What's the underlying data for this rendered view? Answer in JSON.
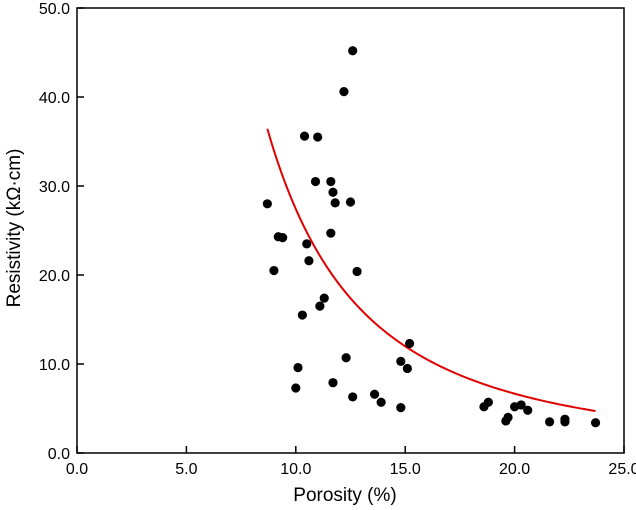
{
  "chart_data": {
    "type": "scatter",
    "xlabel": "Porosity (%)",
    "ylabel": "Resistivity (kΩ·cm)",
    "xlim": [
      0,
      25
    ],
    "ylim": [
      0,
      50
    ],
    "x_ticks": [
      0,
      5,
      10,
      15,
      20,
      25
    ],
    "y_ticks": [
      0,
      10,
      20,
      30,
      40,
      50
    ],
    "x_tick_labels": [
      "0.0",
      "5.0",
      "10.0",
      "15.0",
      "20.0",
      "25.0"
    ],
    "y_tick_labels": [
      "0.0",
      "10.0",
      "20.0",
      "30.0",
      "40.0",
      "50.0"
    ],
    "grid": false,
    "legend": "none",
    "colors": {
      "points": "#000000",
      "fit": "#e00000",
      "axes": "#000000"
    },
    "series": [
      {
        "type": "scatter",
        "points": [
          [
            8.7,
            28.0
          ],
          [
            9.0,
            20.5
          ],
          [
            9.2,
            24.3
          ],
          [
            9.4,
            24.2
          ],
          [
            10.0,
            7.3
          ],
          [
            10.1,
            9.6
          ],
          [
            10.3,
            15.5
          ],
          [
            10.4,
            35.6
          ],
          [
            10.5,
            23.5
          ],
          [
            10.6,
            21.6
          ],
          [
            10.9,
            30.5
          ],
          [
            11.0,
            35.5
          ],
          [
            11.1,
            16.5
          ],
          [
            11.3,
            17.4
          ],
          [
            11.6,
            24.7
          ],
          [
            11.6,
            30.5
          ],
          [
            11.7,
            29.3
          ],
          [
            11.7,
            7.9
          ],
          [
            11.8,
            28.1
          ],
          [
            12.2,
            40.6
          ],
          [
            12.3,
            10.7
          ],
          [
            12.5,
            28.2
          ],
          [
            12.6,
            45.2
          ],
          [
            12.6,
            6.3
          ],
          [
            12.8,
            20.4
          ],
          [
            13.6,
            6.6
          ],
          [
            13.9,
            5.7
          ],
          [
            14.8,
            10.3
          ],
          [
            14.8,
            5.1
          ],
          [
            15.1,
            9.5
          ],
          [
            15.2,
            12.3
          ],
          [
            18.6,
            5.2
          ],
          [
            18.8,
            5.7
          ],
          [
            19.6,
            3.6
          ],
          [
            19.7,
            4.0
          ],
          [
            20.0,
            5.2
          ],
          [
            20.3,
            5.4
          ],
          [
            20.6,
            4.8
          ],
          [
            21.6,
            3.5
          ],
          [
            22.3,
            3.8
          ],
          [
            22.3,
            3.5
          ],
          [
            23.7,
            3.4
          ]
        ]
      },
      {
        "type": "line",
        "fit": {
          "form": "power",
          "a": 3006,
          "b": -2.04
        },
        "x_range": [
          8.7,
          23.7
        ]
      }
    ]
  }
}
